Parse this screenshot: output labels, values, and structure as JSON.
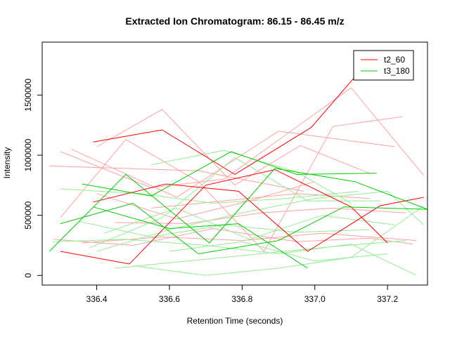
{
  "chart_data": {
    "type": "line",
    "title": "Extracted Ion Chromatogram: 86.15 - 86.45 m/z",
    "xlabel": "Retention Time (seconds)",
    "ylabel": "Intensity",
    "xlim": [
      336.25,
      337.31
    ],
    "ylim": [
      -80000,
      1940000
    ],
    "xticks": [
      336.4,
      336.6,
      336.8,
      337.0,
      337.2
    ],
    "xtick_labels": [
      "336.4",
      "336.6",
      "336.8",
      "337.0",
      "337.2"
    ],
    "yticks": [
      0,
      500000,
      1000000,
      1500000
    ],
    "ytick_labels": [
      "0",
      "500000",
      "1000000",
      "1500000"
    ],
    "legend_position": "top-right",
    "series": [
      {
        "name": "t2_60",
        "color": "#ff0000",
        "x": [
          336.39,
          336.58,
          336.78,
          336.99,
          337.13
        ],
        "y": [
          1110000,
          1210000,
          840000,
          1230000,
          1720000
        ]
      },
      {
        "name": "",
        "color": "#ff0000",
        "x": [
          336.39,
          336.59,
          336.79,
          336.98,
          337.18,
          337.3
        ],
        "y": [
          610000,
          760000,
          700000,
          200000,
          580000,
          650000
        ]
      },
      {
        "name": "",
        "color": "#ff0000",
        "x": [
          336.3,
          336.49,
          336.7,
          336.89,
          337.1,
          337.2
        ],
        "y": [
          200000,
          95000,
          750000,
          880000,
          570000,
          270000
        ]
      },
      {
        "name": "t3_180",
        "color": "#00cd00",
        "x": [
          336.36,
          336.55,
          336.77,
          336.95,
          337.17
        ],
        "y": [
          760000,
          660000,
          1030000,
          840000,
          850000
        ]
      },
      {
        "name": "",
        "color": "#00cd00",
        "x": [
          336.3,
          336.5,
          336.68,
          336.9,
          337.08,
          337.31
        ],
        "y": [
          430000,
          600000,
          180000,
          290000,
          570000,
          550000
        ]
      },
      {
        "name": "",
        "color": "#00cd00",
        "x": [
          336.27,
          336.48,
          336.71,
          336.89,
          337.11,
          337.31
        ],
        "y": [
          200000,
          840000,
          270000,
          890000,
          780000,
          550000
        ]
      },
      {
        "name": "",
        "color": "#00cd00",
        "x": [
          336.39,
          336.6,
          336.79,
          336.98
        ],
        "y": [
          570000,
          390000,
          430000,
          60000
        ]
      }
    ],
    "faint_series": [
      {
        "color": "#ffa0a0",
        "x": [
          336.27,
          336.68,
          336.97
        ],
        "y": [
          910000,
          870000,
          700000
        ]
      },
      {
        "color": "#ffa0a0",
        "x": [
          336.3,
          336.55,
          336.75,
          337.1,
          337.3
        ],
        "y": [
          1030000,
          730000,
          800000,
          1560000,
          830000
        ]
      },
      {
        "color": "#ffa0a0",
        "x": [
          336.33,
          336.62,
          336.9,
          337.22
        ],
        "y": [
          1050000,
          650000,
          1200000,
          1070000
        ]
      },
      {
        "color": "#ffa0a0",
        "x": [
          336.3,
          336.48,
          336.68,
          336.86,
          337.05,
          337.24
        ],
        "y": [
          480000,
          1130000,
          780000,
          200000,
          1240000,
          1320000
        ]
      },
      {
        "color": "#ffa0a0",
        "x": [
          336.4,
          336.58,
          336.78,
          336.96,
          337.15
        ],
        "y": [
          1070000,
          1380000,
          750000,
          1080000,
          850000
        ]
      },
      {
        "color": "#ffa0a0",
        "x": [
          336.28,
          336.5,
          336.72,
          336.95,
          337.15,
          337.27
        ],
        "y": [
          300000,
          250000,
          390000,
          280000,
          310000,
          260000
        ]
      },
      {
        "color": "#ffa0a0",
        "x": [
          336.36,
          336.58,
          336.8,
          337.02,
          337.28
        ],
        "y": [
          270000,
          320000,
          290000,
          350000,
          290000
        ]
      },
      {
        "color": "#ffa0a0",
        "x": [
          336.45,
          336.65,
          336.85,
          337.05,
          337.25
        ],
        "y": [
          440000,
          430000,
          520000,
          560000,
          520000
        ]
      },
      {
        "color": "#ffa0a0",
        "x": [
          336.4,
          336.62,
          336.82,
          337.0
        ],
        "y": [
          680000,
          470000,
          620000,
          780000
        ]
      },
      {
        "color": "#ffa0a0",
        "x": [
          336.55,
          336.75,
          336.95,
          337.15
        ],
        "y": [
          560000,
          620000,
          680000,
          640000
        ]
      },
      {
        "color": "#90ee90",
        "x": [
          336.28,
          336.48,
          336.7,
          336.9,
          337.1,
          337.28
        ],
        "y": [
          280000,
          300000,
          250000,
          180000,
          260000,
          0
        ]
      },
      {
        "color": "#90ee90",
        "x": [
          336.3,
          336.52,
          336.72,
          336.92,
          337.12
        ],
        "y": [
          720000,
          680000,
          600000,
          640000,
          700000
        ]
      },
      {
        "color": "#90ee90",
        "x": [
          336.38,
          336.58,
          336.78,
          336.98,
          337.18
        ],
        "y": [
          230000,
          480000,
          980000,
          620000,
          620000
        ]
      },
      {
        "color": "#90ee90",
        "x": [
          336.4,
          336.6,
          336.8,
          337.0,
          337.2,
          337.3
        ],
        "y": [
          200000,
          380000,
          520000,
          640000,
          700000,
          420000
        ]
      },
      {
        "color": "#90ee90",
        "x": [
          336.45,
          336.65,
          336.85,
          337.05,
          337.25
        ],
        "y": [
          60000,
          120000,
          180000,
          240000,
          290000
        ]
      },
      {
        "color": "#90ee90",
        "x": [
          336.5,
          336.7,
          336.9,
          337.1,
          337.3
        ],
        "y": [
          80000,
          0,
          60000,
          150000,
          580000
        ]
      },
      {
        "color": "#90ee90",
        "x": [
          336.35,
          336.55,
          336.75,
          336.95,
          337.15
        ],
        "y": [
          450000,
          320000,
          420000,
          360000,
          380000
        ]
      },
      {
        "color": "#90ee90",
        "x": [
          336.42,
          336.62,
          336.82,
          337.02,
          337.22
        ],
        "y": [
          350000,
          560000,
          300000,
          500000,
          420000
        ]
      },
      {
        "color": "#90ee90",
        "x": [
          336.6,
          336.8,
          337.0,
          337.2
        ],
        "y": [
          200000,
          280000,
          120000,
          180000
        ]
      },
      {
        "color": "#90ee90",
        "x": [
          336.55,
          336.75,
          336.95,
          337.1
        ],
        "y": [
          920000,
          1040000,
          860000,
          600000
        ]
      }
    ]
  }
}
